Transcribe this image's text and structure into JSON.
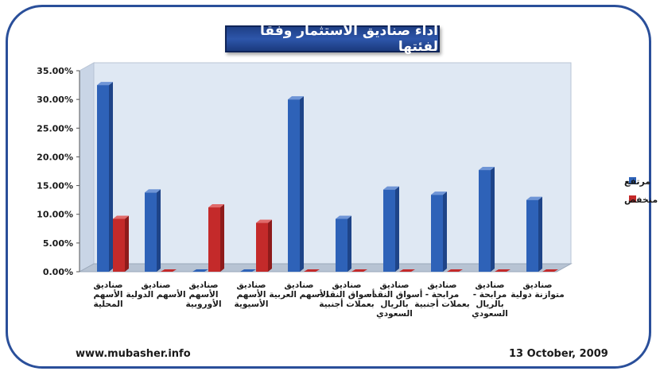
{
  "title": "اداء صناديق الاستثمار وفقا لفئتها",
  "footer": {
    "website": "www.mubasher.info",
    "date": "13 October, 2009"
  },
  "colors": {
    "frame": "#2a4f9a",
    "plot_bg": "#dfe8f3",
    "high": "#2e62b8",
    "low": "#c42a2a"
  },
  "chart_data": {
    "type": "bar",
    "categories": [
      [
        "صناديق",
        "الأسهم",
        "المحلية"
      ],
      [
        "صناديق",
        "الأسهم الدولية"
      ],
      [
        "صناديق",
        "الأسهم",
        "الأوروبية"
      ],
      [
        "صناديق",
        "الأسهم",
        "الأسيوية"
      ],
      [
        "صناديق",
        "الأسهم العربية"
      ],
      [
        "صناديق",
        "أسواق النقد -",
        "بعملات أجنبية"
      ],
      [
        "صناديق",
        "أسواق النقد -",
        "بالريال",
        "السعودي"
      ],
      [
        "صناديق",
        "مرابحة -",
        "بعملات أجنبية"
      ],
      [
        "صناديق",
        "مرابحة -",
        "بالريال",
        "السعودي"
      ],
      [
        "صناديق",
        "متوازنة دولية"
      ]
    ],
    "series": [
      {
        "name": "مرتفع",
        "values": [
          32.5,
          13.8,
          0,
          0,
          30.0,
          9.2,
          14.3,
          13.4,
          17.7,
          12.5
        ]
      },
      {
        "name": "منخفض",
        "values": [
          9.2,
          0,
          11.2,
          8.5,
          0,
          0,
          0,
          0,
          0,
          0
        ]
      }
    ],
    "yticks": [
      "0.00%",
      "5.00%",
      "10.00%",
      "15.00%",
      "20.00%",
      "25.00%",
      "30.00%",
      "35.00%"
    ],
    "ylim": [
      0,
      35
    ],
    "legend_position": "right",
    "grid": false
  }
}
